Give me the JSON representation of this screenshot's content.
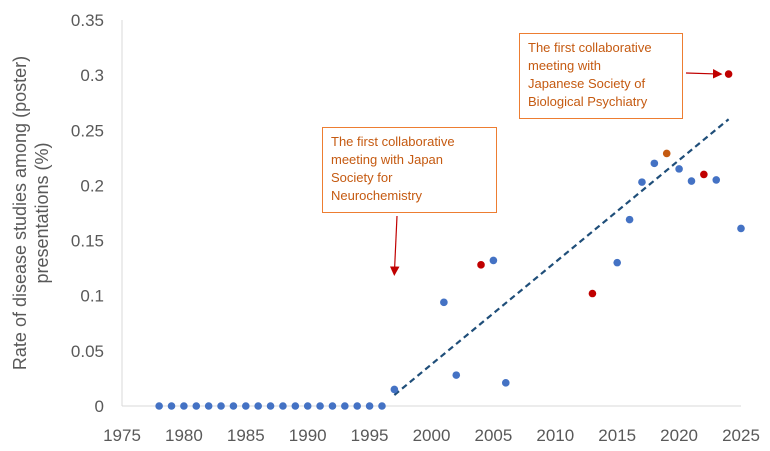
{
  "chart_data": {
    "type": "scatter",
    "ylabel": [
      "Rate of disease studies among (poster)",
      "presentations (%)"
    ],
    "xlim": [
      1975,
      2025
    ],
    "ylim": [
      0,
      0.35
    ],
    "xticks": [
      "1975",
      "1980",
      "1985",
      "1990",
      "1995",
      "2000",
      "2005",
      "2010",
      "2015",
      "2020",
      "2025"
    ],
    "yticks": [
      "0",
      "0.05",
      "0.1",
      "0.15",
      "0.2",
      "0.25",
      "0.3",
      "0.35"
    ],
    "grid": false,
    "series": [
      {
        "color": "#4472c4",
        "points": [
          [
            1978,
            0
          ],
          [
            1979,
            0
          ],
          [
            1980,
            0
          ],
          [
            1981,
            0
          ],
          [
            1982,
            0
          ],
          [
            1983,
            0
          ],
          [
            1984,
            0
          ],
          [
            1985,
            0
          ],
          [
            1986,
            0
          ],
          [
            1987,
            0
          ],
          [
            1988,
            0
          ],
          [
            1989,
            0
          ],
          [
            1990,
            0
          ],
          [
            1991,
            0
          ],
          [
            1992,
            0
          ],
          [
            1993,
            0
          ],
          [
            1994,
            0
          ],
          [
            1995,
            0
          ],
          [
            1996,
            0
          ],
          [
            1997,
            0.015
          ],
          [
            2001,
            0.094
          ],
          [
            2002,
            0.028
          ],
          [
            2005,
            0.132
          ],
          [
            2006,
            0.021
          ],
          [
            2015,
            0.13
          ],
          [
            2016,
            0.169
          ],
          [
            2017,
            0.203
          ],
          [
            2018,
            0.22
          ],
          [
            2020,
            0.215
          ],
          [
            2021,
            0.204
          ],
          [
            2023,
            0.205
          ],
          [
            2025,
            0.161
          ]
        ]
      },
      {
        "color": "#c00000",
        "points": [
          [
            2004,
            0.128
          ],
          [
            2013,
            0.102
          ],
          [
            2022,
            0.21
          ],
          [
            2024,
            0.301
          ]
        ]
      },
      {
        "color": "#c55a11",
        "points": [
          [
            2019,
            0.229
          ]
        ]
      }
    ],
    "trendline": {
      "style": "dashed",
      "color": "#1f4e79",
      "from": [
        1997,
        0.01
      ],
      "to": [
        2024,
        0.26
      ]
    },
    "annotations": [
      {
        "lines": [
          "The first collaborative",
          "meeting with Japan",
          "Society for",
          "Neurochemistry"
        ],
        "arrow_to": [
          1997,
          0.12
        ]
      },
      {
        "lines": [
          "The first collaborative",
          "meeting with",
          "Japanese Society of",
          "Biological Psychiatry"
        ],
        "arrow_to": [
          2023.8,
          0.301
        ]
      }
    ]
  }
}
